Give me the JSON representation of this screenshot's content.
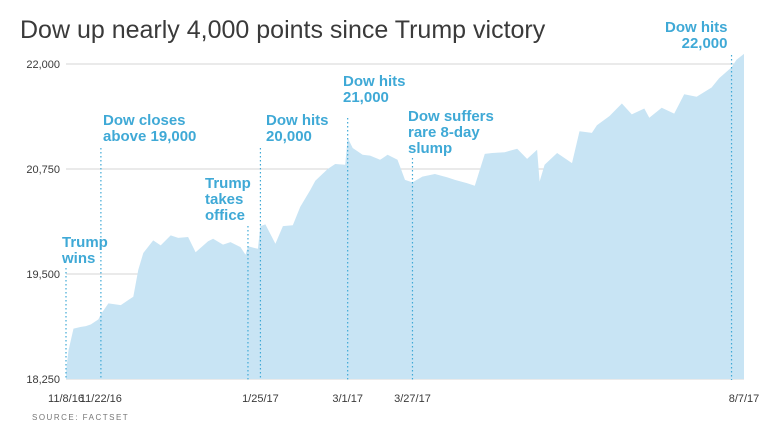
{
  "title": "Dow up nearly 4,000 points since Trump victory",
  "source": "SOURCE: FACTSET",
  "colors": {
    "area": "#c8e4f4",
    "annotation": "#3fa9d6",
    "grid": "#d5d5d5",
    "text": "#3a3a3a"
  },
  "chart_data": {
    "type": "area",
    "title": "Dow up nearly 4,000 points since Trump victory",
    "xlabel": "",
    "ylabel": "",
    "ylim": [
      18250,
      22000
    ],
    "yticks": [
      18250,
      19500,
      20750,
      22000
    ],
    "ytick_labels": [
      "18,250",
      "19,500",
      "20,750",
      "22,000"
    ],
    "grid": true,
    "xticks": [
      {
        "date": "2016-11-08",
        "label": "11/8/16"
      },
      {
        "date": "2016-11-22",
        "label": "11/22/16"
      },
      {
        "date": "2017-01-25",
        "label": "1/25/17"
      },
      {
        "date": "2017-03-01",
        "label": "3/1/17"
      },
      {
        "date": "2017-03-27",
        "label": "3/27/17"
      },
      {
        "date": "2017-08-07",
        "label": "8/7/17"
      }
    ],
    "series": [
      {
        "x": [
          "2016-11-08",
          "2016-11-09",
          "2016-11-11",
          "2016-11-14",
          "2016-11-16",
          "2016-11-18",
          "2016-11-21",
          "2016-11-22",
          "2016-11-25",
          "2016-11-30",
          "2016-12-02",
          "2016-12-05",
          "2016-12-07",
          "2016-12-09",
          "2016-12-13",
          "2016-12-16",
          "2016-12-20",
          "2016-12-23",
          "2016-12-27",
          "2016-12-30",
          "2017-01-04",
          "2017-01-06",
          "2017-01-10",
          "2017-01-13",
          "2017-01-17",
          "2017-01-19",
          "2017-01-20",
          "2017-01-24",
          "2017-01-25",
          "2017-01-27",
          "2017-01-31",
          "2017-02-03",
          "2017-02-07",
          "2017-02-10",
          "2017-02-14",
          "2017-02-16",
          "2017-02-21",
          "2017-02-24",
          "2017-02-28",
          "2017-03-01",
          "2017-03-03",
          "2017-03-07",
          "2017-03-10",
          "2017-03-14",
          "2017-03-17",
          "2017-03-21",
          "2017-03-24",
          "2017-03-27",
          "2017-03-31",
          "2017-04-05",
          "2017-04-10",
          "2017-04-13",
          "2017-04-18",
          "2017-04-21",
          "2017-04-25",
          "2017-04-28",
          "2017-05-03",
          "2017-05-08",
          "2017-05-12",
          "2017-05-16",
          "2017-05-17",
          "2017-05-19",
          "2017-05-24",
          "2017-05-30",
          "2017-06-02",
          "2017-06-07",
          "2017-06-09",
          "2017-06-14",
          "2017-06-19",
          "2017-06-23",
          "2017-06-28",
          "2017-06-30",
          "2017-07-05",
          "2017-07-10",
          "2017-07-14",
          "2017-07-19",
          "2017-07-25",
          "2017-07-28",
          "2017-08-02",
          "2017-08-04",
          "2017-08-07"
        ],
        "values": [
          18330,
          18590,
          18850,
          18870,
          18880,
          18900,
          18960,
          19020,
          19150,
          19130,
          19170,
          19230,
          19550,
          19750,
          19900,
          19840,
          19960,
          19930,
          19940,
          19760,
          19890,
          19920,
          19850,
          19880,
          19820,
          19730,
          19830,
          19800,
          20070,
          20090,
          19860,
          20070,
          20080,
          20300,
          20500,
          20610,
          20750,
          20810,
          20800,
          21120,
          21000,
          20920,
          20910,
          20860,
          20920,
          20860,
          20620,
          20590,
          20660,
          20690,
          20650,
          20620,
          20580,
          20550,
          20930,
          20940,
          20950,
          20990,
          20870,
          20980,
          20600,
          20800,
          20940,
          20820,
          21200,
          21180,
          21270,
          21380,
          21530,
          21400,
          21470,
          21360,
          21480,
          21410,
          21640,
          21610,
          21720,
          21830,
          21960,
          22050,
          22120
        ]
      }
    ],
    "annotations": [
      {
        "date": "2016-11-08",
        "text": [
          "Trump",
          "wins"
        ]
      },
      {
        "date": "2016-11-22",
        "text": [
          "Dow closes",
          "above 19,000"
        ]
      },
      {
        "date": "2017-01-20",
        "text": [
          "Trump",
          "takes",
          "office"
        ]
      },
      {
        "date": "2017-01-25",
        "text": [
          "Dow hits",
          "20,000"
        ]
      },
      {
        "date": "2017-03-01",
        "text": [
          "Dow hits",
          "21,000"
        ]
      },
      {
        "date": "2017-03-27",
        "text": [
          "Dow suffers",
          "rare 8-day",
          "slump"
        ]
      },
      {
        "date": "2017-08-02",
        "text": [
          "Dow hits",
          "22,000"
        ]
      }
    ]
  }
}
